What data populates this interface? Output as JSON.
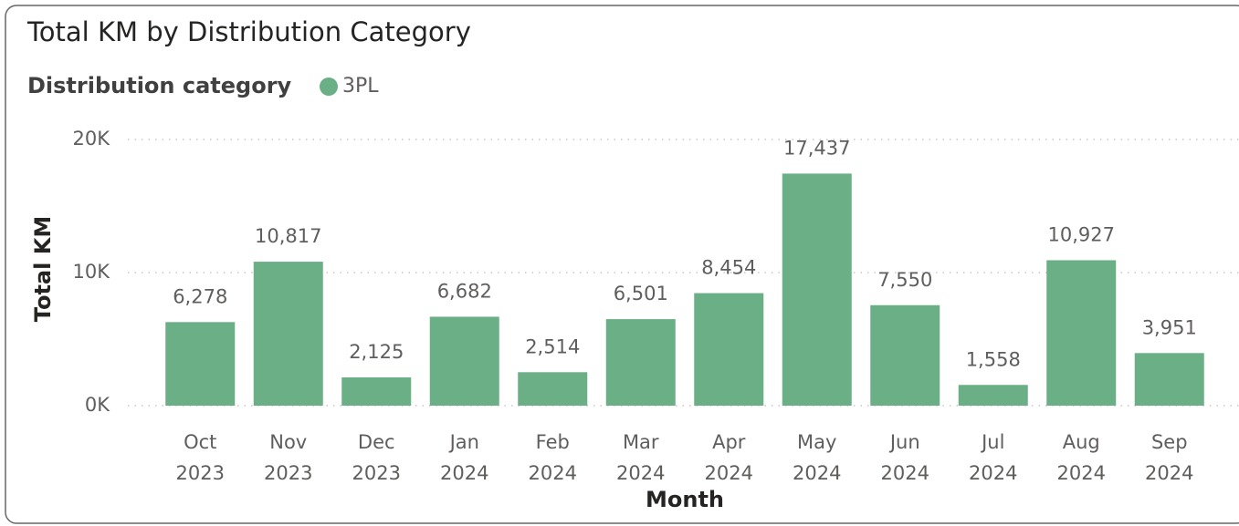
{
  "chart_data": {
    "type": "bar",
    "title": "Total KM by Distribution Category",
    "legend_title": "Distribution category",
    "series": [
      {
        "name": "3PL",
        "color": "#6aaf85",
        "values": [
          6278,
          10817,
          2125,
          6682,
          2514,
          6501,
          8454,
          17437,
          7550,
          1558,
          10927,
          3951
        ],
        "value_labels": [
          "6,278",
          "10,817",
          "2,125",
          "6,682",
          "2,514",
          "6,501",
          "8,454",
          "17,437",
          "7,550",
          "1,558",
          "10,927",
          "3,951"
        ]
      }
    ],
    "categories": [
      "Oct 2023",
      "Nov 2023",
      "Dec 2023",
      "Jan 2024",
      "Feb 2024",
      "Mar 2024",
      "Apr 2024",
      "May 2024",
      "Jun 2024",
      "Jul 2024",
      "Aug 2024",
      "Sep 2024"
    ],
    "x_label": "Month",
    "y_label": "Total KM",
    "ylim": [
      0,
      20000
    ],
    "yticks": [
      {
        "value": 0,
        "label": "0K"
      },
      {
        "value": 10000,
        "label": "10K"
      },
      {
        "value": 20000,
        "label": "20K"
      }
    ],
    "grid": true
  }
}
